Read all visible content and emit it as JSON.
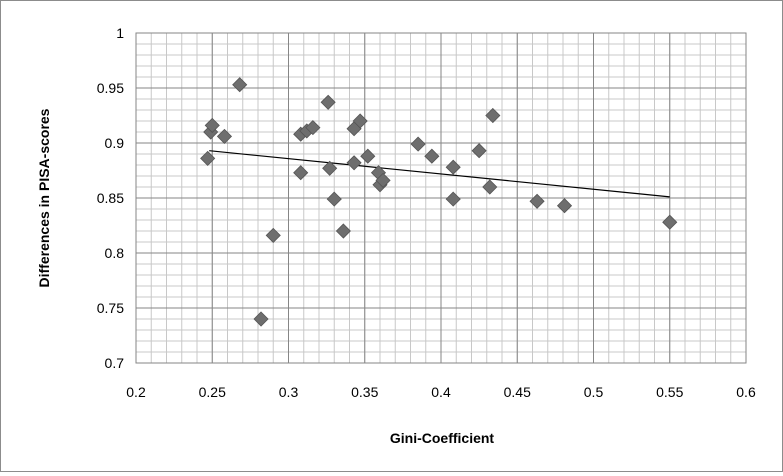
{
  "chart_data": {
    "type": "scatter",
    "title": "",
    "xlabel": "Gini-Coefficient",
    "ylabel": "Differences in PISA-scores",
    "xlim": [
      0.2,
      0.6
    ],
    "ylim": [
      0.7,
      1.0
    ],
    "xticks": [
      "0.2",
      "0.25",
      "0.3",
      "0.35",
      "0.4",
      "0.45",
      "0.5",
      "0.55",
      "0.6"
    ],
    "yticks": [
      "0.7",
      "0.75",
      "0.8",
      "0.85",
      "0.9",
      "0.95",
      "1"
    ],
    "x_tick_values": [
      0.2,
      0.25,
      0.3,
      0.35,
      0.4,
      0.45,
      0.5,
      0.55,
      0.6
    ],
    "y_tick_values": [
      0.7,
      0.75,
      0.8,
      0.85,
      0.9,
      0.95,
      1.0
    ],
    "grid": true,
    "legend": "none",
    "marker": "diamond",
    "marker_color": "#6e6e6e",
    "trendline": {
      "type": "linear",
      "x": [
        0.248,
        0.55
      ],
      "y": [
        0.893,
        0.851
      ],
      "color": "#000000"
    },
    "points": [
      {
        "x": 0.247,
        "y": 0.886
      },
      {
        "x": 0.249,
        "y": 0.91
      },
      {
        "x": 0.25,
        "y": 0.916
      },
      {
        "x": 0.258,
        "y": 0.906
      },
      {
        "x": 0.268,
        "y": 0.953
      },
      {
        "x": 0.282,
        "y": 0.74
      },
      {
        "x": 0.29,
        "y": 0.816
      },
      {
        "x": 0.308,
        "y": 0.908
      },
      {
        "x": 0.308,
        "y": 0.873
      },
      {
        "x": 0.312,
        "y": 0.911
      },
      {
        "x": 0.316,
        "y": 0.914
      },
      {
        "x": 0.326,
        "y": 0.937
      },
      {
        "x": 0.327,
        "y": 0.877
      },
      {
        "x": 0.33,
        "y": 0.849
      },
      {
        "x": 0.336,
        "y": 0.82
      },
      {
        "x": 0.343,
        "y": 0.913
      },
      {
        "x": 0.343,
        "y": 0.882
      },
      {
        "x": 0.347,
        "y": 0.92
      },
      {
        "x": 0.352,
        "y": 0.888
      },
      {
        "x": 0.359,
        "y": 0.873
      },
      {
        "x": 0.36,
        "y": 0.862
      },
      {
        "x": 0.362,
        "y": 0.866
      },
      {
        "x": 0.385,
        "y": 0.899
      },
      {
        "x": 0.394,
        "y": 0.888
      },
      {
        "x": 0.408,
        "y": 0.878
      },
      {
        "x": 0.408,
        "y": 0.849
      },
      {
        "x": 0.425,
        "y": 0.893
      },
      {
        "x": 0.432,
        "y": 0.86
      },
      {
        "x": 0.434,
        "y": 0.925
      },
      {
        "x": 0.463,
        "y": 0.847
      },
      {
        "x": 0.481,
        "y": 0.843
      },
      {
        "x": 0.55,
        "y": 0.828
      }
    ]
  }
}
